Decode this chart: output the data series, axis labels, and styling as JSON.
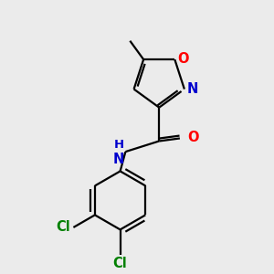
{
  "background_color": "#ebebeb",
  "bond_color": "#000000",
  "atom_colors": {
    "O": "#ff0000",
    "N": "#0000cd",
    "Cl": "#008000",
    "C": "#000000",
    "H": "#000000"
  },
  "figsize": [
    3.0,
    3.0
  ],
  "dpi": 100,
  "bond_lw": 1.6,
  "font_size": 10.5
}
